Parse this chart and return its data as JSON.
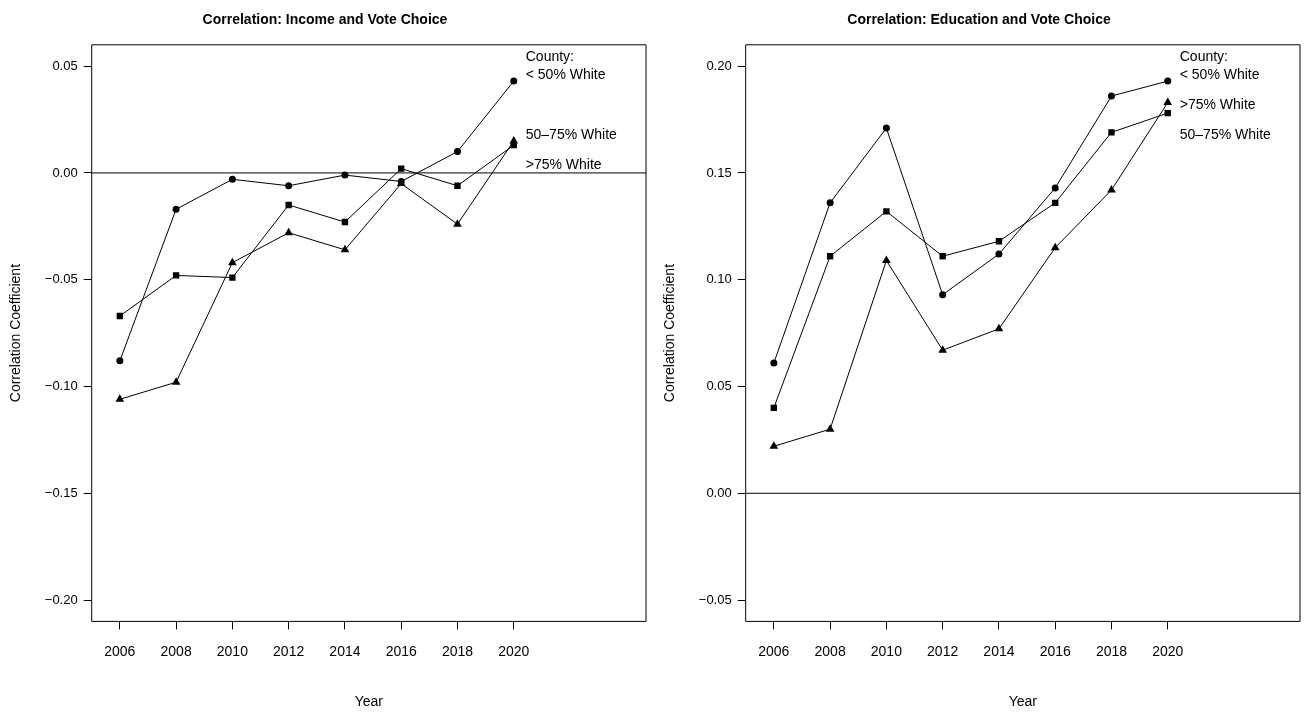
{
  "chart_data": [
    {
      "type": "line",
      "title": "Correlation: Income and Vote Choice",
      "xlabel": "Year",
      "ylabel": "Correlation Coefficient",
      "legend_title": "County:",
      "x": [
        2006,
        2008,
        2010,
        2012,
        2014,
        2016,
        2018,
        2020
      ],
      "xlim": [
        2005,
        2024.7
      ],
      "xticks": [
        2006,
        2008,
        2010,
        2012,
        2014,
        2016,
        2018,
        2020
      ],
      "ylim": [
        -0.21,
        0.06
      ],
      "yticks": [
        {
          "value": -0.2,
          "label": "−0.20"
        },
        {
          "value": -0.15,
          "label": "−0.15"
        },
        {
          "value": -0.1,
          "label": "−0.10"
        },
        {
          "value": -0.05,
          "label": "−0.05"
        },
        {
          "value": 0,
          "label": "0.00"
        },
        {
          "value": 0.05,
          "label": "0.05"
        }
      ],
      "grid": false,
      "ref_lines": [
        {
          "axis": "y",
          "value": 0,
          "color": "#000000"
        }
      ],
      "series": [
        {
          "name": "< 50% White",
          "color": "#000000",
          "marker": "circle",
          "values": [
            -0.088,
            -0.017,
            -0.003,
            -0.006,
            -0.001,
            -0.004,
            0.01,
            0.043
          ]
        },
        {
          "name": "50–75% White",
          "color": "#000000",
          "marker": "triangle",
          "values": [
            -0.106,
            -0.098,
            -0.042,
            -0.028,
            -0.036,
            -0.005,
            -0.024,
            0.015
          ]
        },
        {
          "name": ">75% White",
          "color": "#000000",
          "marker": "square",
          "values": [
            -0.067,
            -0.048,
            -0.049,
            -0.015,
            -0.023,
            0.002,
            -0.006,
            0.013
          ]
        }
      ]
    },
    {
      "type": "line",
      "title": "Correlation: Education and Vote Choice",
      "xlabel": "Year",
      "ylabel": "Correlation Coefficient",
      "legend_title": "County:",
      "x": [
        2006,
        2008,
        2010,
        2012,
        2014,
        2016,
        2018,
        2020
      ],
      "xlim": [
        2005,
        2024.7
      ],
      "xticks": [
        2006,
        2008,
        2010,
        2012,
        2014,
        2016,
        2018,
        2020
      ],
      "ylim": [
        -0.06,
        0.21
      ],
      "yticks": [
        {
          "value": -0.05,
          "label": "−0.05"
        },
        {
          "value": 0,
          "label": "0.00"
        },
        {
          "value": 0.05,
          "label": "0.05"
        },
        {
          "value": 0.1,
          "label": "0.10"
        },
        {
          "value": 0.15,
          "label": "0.15"
        },
        {
          "value": 0.2,
          "label": "0.20"
        }
      ],
      "grid": false,
      "ref_lines": [
        {
          "axis": "y",
          "value": 0,
          "color": "#000000"
        }
      ],
      "series": [
        {
          "name": "< 50% White",
          "color": "#000000",
          "marker": "circle",
          "values": [
            0.061,
            0.136,
            0.171,
            0.093,
            0.112,
            0.143,
            0.186,
            0.193
          ]
        },
        {
          "name": ">75% White",
          "color": "#000000",
          "marker": "triangle",
          "values": [
            0.022,
            0.03,
            0.109,
            0.067,
            0.077,
            0.115,
            0.142,
            0.183
          ]
        },
        {
          "name": "50–75% White",
          "color": "#000000",
          "marker": "square",
          "values": [
            0.04,
            0.111,
            0.132,
            0.111,
            0.118,
            0.136,
            0.169,
            0.178
          ]
        }
      ]
    }
  ]
}
